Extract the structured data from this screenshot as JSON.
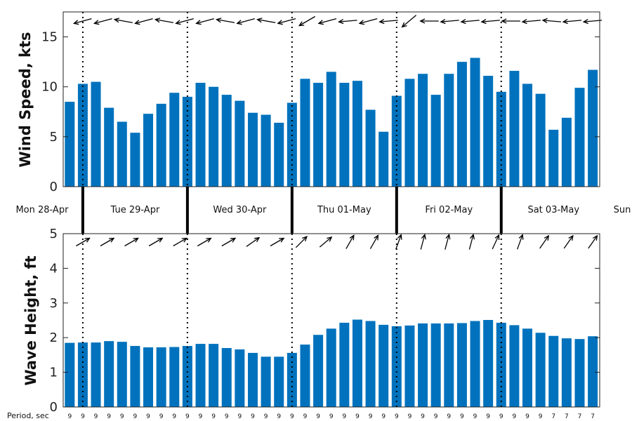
{
  "chart_data": [
    {
      "type": "bar",
      "ylabel": "Wind Speed, kts",
      "ylim": [
        0,
        17.5
      ],
      "yticks": [
        "0",
        "5",
        "10",
        "15"
      ],
      "grid": false,
      "color": "#0072bd",
      "values": [
        8.5,
        10.3,
        10.5,
        7.9,
        6.5,
        5.4,
        7.3,
        8.3,
        9.4,
        9.0,
        10.4,
        10.0,
        9.2,
        8.6,
        7.4,
        7.2,
        6.4,
        8.4,
        10.8,
        10.4,
        11.5,
        10.4,
        10.6,
        7.7,
        5.5,
        9.1,
        10.8,
        11.3,
        9.2,
        11.3,
        12.5,
        12.9,
        11.1,
        9.5,
        11.6,
        10.3,
        9.3,
        5.7,
        6.9,
        9.9,
        11.7
      ],
      "wind_direction_arrows_deg": [
        255,
        255,
        280,
        255,
        280,
        255,
        255,
        280,
        255,
        280,
        255,
        240,
        255,
        265,
        255,
        265,
        230,
        270,
        265,
        265,
        265,
        270,
        265,
        275,
        265,
        265
      ]
    },
    {
      "type": "bar",
      "ylabel": "Wave Height, ft",
      "ylim": [
        0,
        5
      ],
      "yticks": [
        "0",
        "1",
        "2",
        "3",
        "4",
        "5"
      ],
      "grid": false,
      "color": "#0072bd",
      "values": [
        1.85,
        1.86,
        1.86,
        1.9,
        1.88,
        1.76,
        1.72,
        1.72,
        1.73,
        1.76,
        1.82,
        1.82,
        1.7,
        1.66,
        1.56,
        1.45,
        1.45,
        1.56,
        1.8,
        2.08,
        2.26,
        2.43,
        2.52,
        2.48,
        2.37,
        2.33,
        2.35,
        2.41,
        2.41,
        2.41,
        2.42,
        2.48,
        2.51,
        2.43,
        2.36,
        2.26,
        2.14,
        2.05,
        1.98,
        1.96,
        2.04
      ],
      "wave_direction_arrows_deg": [
        60,
        60,
        60,
        60,
        60,
        60,
        60,
        55,
        60,
        45,
        50,
        30,
        30,
        20,
        15,
        15,
        15,
        25,
        20,
        35,
        35,
        35
      ],
      "period_title": "Period, sec",
      "periods": [
        "9",
        "9",
        "9",
        "9",
        "9",
        "9",
        "9",
        "9",
        "9",
        "9",
        "9",
        "9",
        "9",
        "9",
        "9",
        "9",
        "9",
        "9",
        "9",
        "9",
        "9",
        "9",
        "9",
        "9",
        "9",
        "9",
        "9",
        "9",
        "9",
        "9",
        "9",
        "9",
        "9",
        "9",
        "9",
        "9",
        "9",
        "7",
        "7",
        "7",
        "7"
      ]
    }
  ],
  "days": [
    "Mon 28-Apr",
    "Tue 29-Apr",
    "Wed 30-Apr",
    "Thu 01-May",
    "Fri 02-May",
    "Sat 03-May",
    "Sun"
  ]
}
